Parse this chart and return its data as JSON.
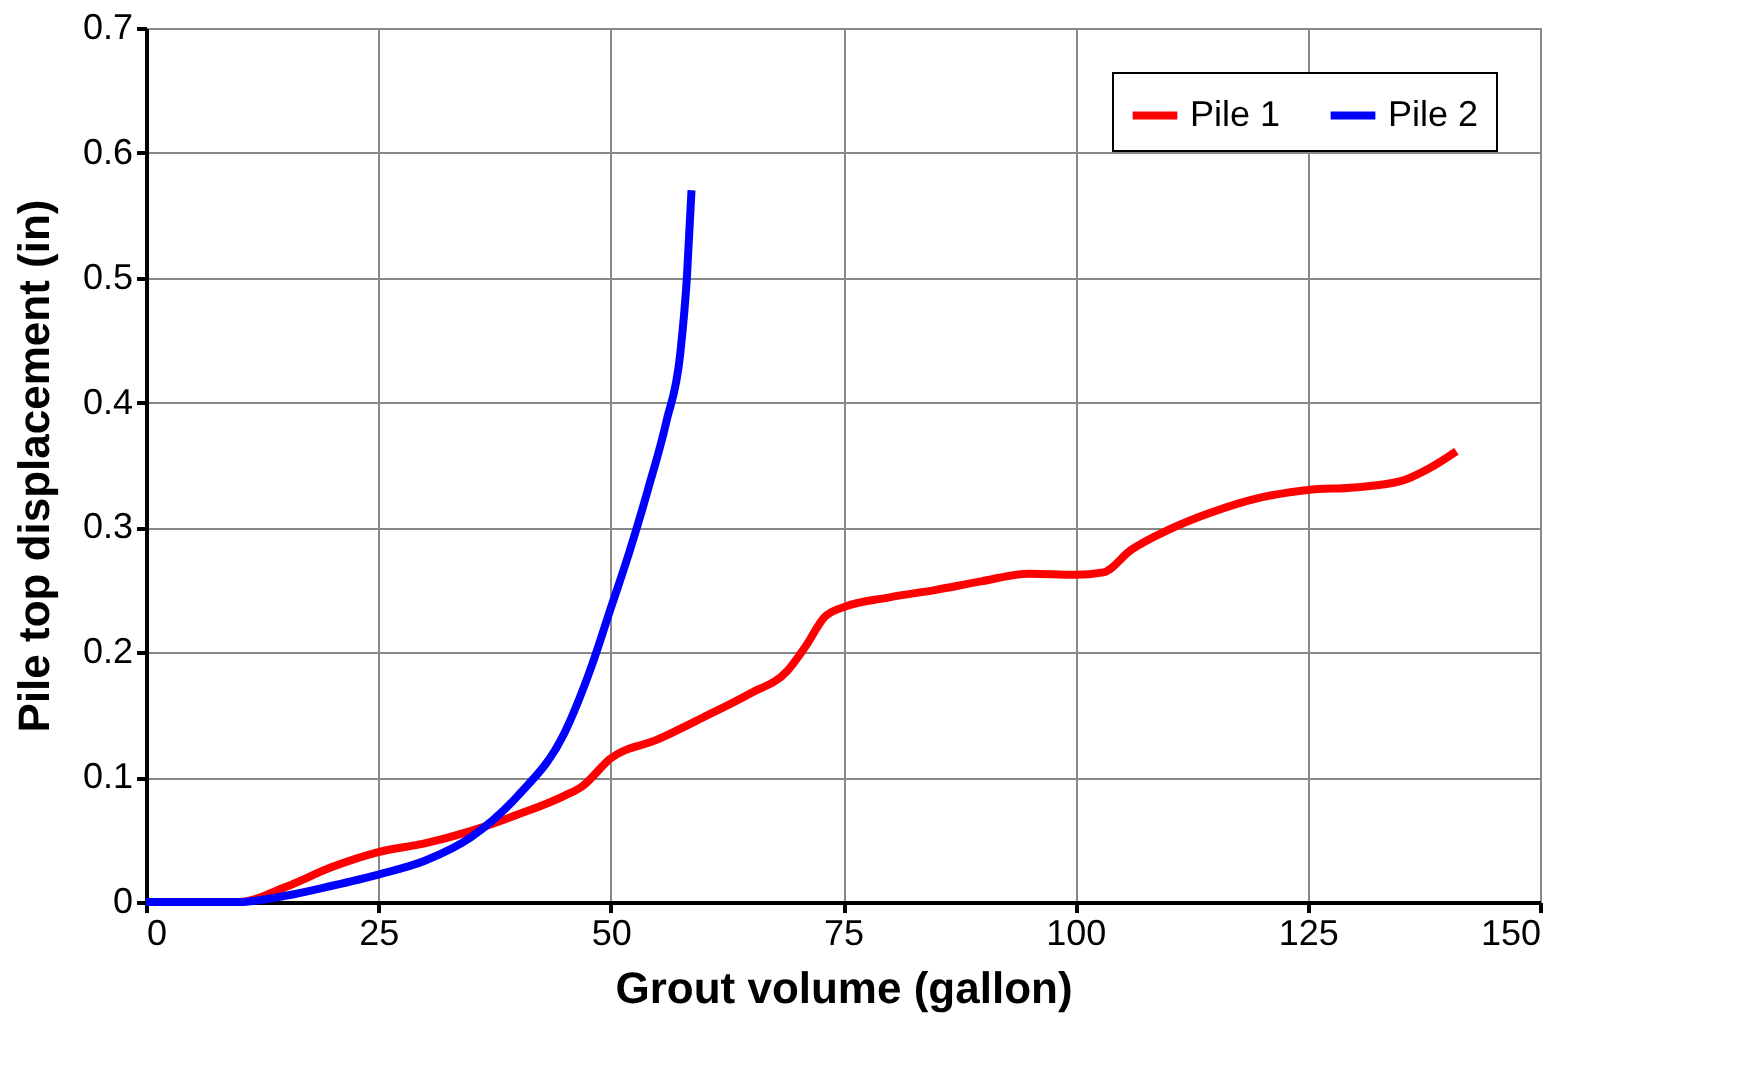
{
  "chart_data": {
    "type": "line",
    "xlabel": "Grout volume (gallon)",
    "ylabel": "Pile top displacement (in)",
    "xlim": [
      0,
      150
    ],
    "xticks": [
      0,
      25,
      50,
      75,
      100,
      125,
      150
    ],
    "ylim": [
      0,
      0.7
    ],
    "yticks": [
      0,
      0.1,
      0.2,
      0.3,
      0.4,
      0.5,
      0.6,
      0.7
    ],
    "grid": true,
    "legend": "top right",
    "marker": "none",
    "line_style": "solid",
    "series": [
      {
        "name": "Pile 1",
        "color": "#ff0000",
        "x": [
          0,
          10,
          15,
          20,
          25,
          30,
          35,
          40,
          45,
          47,
          50,
          55,
          60,
          65,
          69,
          71,
          73,
          75,
          80,
          85,
          90,
          95,
          100,
          103,
          106,
          110,
          115,
          120,
          125,
          130,
          135,
          138,
          141
        ],
        "values": [
          0,
          0,
          0.012,
          0.028,
          0.04,
          0.047,
          0.057,
          0.07,
          0.085,
          0.093,
          0.115,
          0.13,
          0.148,
          0.167,
          0.185,
          0.205,
          0.228,
          0.236,
          0.244,
          0.25,
          0.257,
          0.263,
          0.262,
          0.264,
          0.282,
          0.298,
          0.313,
          0.324,
          0.33,
          0.332,
          0.337,
          0.347,
          0.361
        ]
      },
      {
        "name": "Pile 2",
        "color": "#0000ff",
        "x": [
          0,
          5,
          10,
          15,
          20,
          25,
          30,
          35,
          40,
          45,
          48,
          50,
          52,
          54,
          56,
          57.5,
          58.2,
          58.7
        ],
        "values": [
          0,
          0,
          0,
          0.005,
          0.013,
          0.022,
          0.033,
          0.052,
          0.085,
          0.135,
          0.19,
          0.235,
          0.28,
          0.33,
          0.385,
          0.44,
          0.5,
          0.57
        ]
      }
    ]
  }
}
